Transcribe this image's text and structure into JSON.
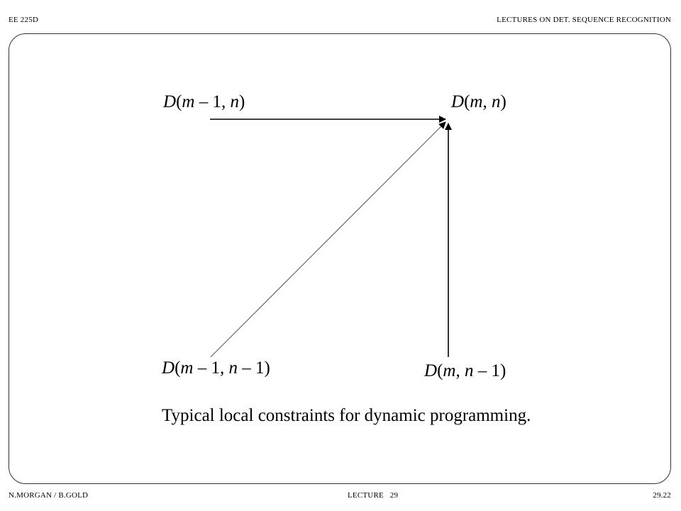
{
  "header": {
    "course": "EE 225D",
    "series_title": "LECTURES ON DET. SEQUENCE RECOGNITION"
  },
  "footer": {
    "authors": "N.MORGAN / B.GOLD",
    "lecture": "LECTURE   29",
    "page": "29.22"
  },
  "diagram": {
    "nodes": {
      "top_left": {
        "func": "D",
        "open": "(",
        "a": "m",
        "op_a": " – 1, ",
        "b": "n",
        "op_b": "",
        "close": ")"
      },
      "top_right": {
        "func": "D",
        "open": "(",
        "a": "m",
        "op_a": ", ",
        "b": "n",
        "op_b": "",
        "close": ")"
      },
      "bottom_left": {
        "func": "D",
        "open": "(",
        "a": "m",
        "op_a": " – 1, ",
        "b": "n",
        "op_b": " – 1",
        "close": ")"
      },
      "bottom_right": {
        "func": "D",
        "open": "(",
        "a": "m",
        "op_a": ", ",
        "b": "n",
        "op_b": " – 1",
        "close": ")"
      }
    },
    "edges": [
      {
        "from": "top_left",
        "to": "top_right",
        "color": "#000000"
      },
      {
        "from": "bottom_left",
        "to": "top_right",
        "color": "#666666"
      },
      {
        "from": "bottom_right",
        "to": "top_right",
        "color": "#000000"
      }
    ],
    "caption": "Typical local constraints for dynamic programming."
  }
}
